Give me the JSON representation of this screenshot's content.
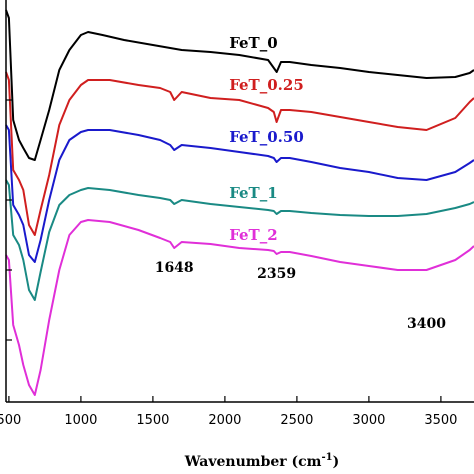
{
  "chart_data": {
    "type": "line",
    "xlabel": "Wavenumber (cm",
    "xlabel_sup": "-1",
    "xlabel_close": ")",
    "ylabel": "",
    "xlim": [
      480,
      3730
    ],
    "xticks": [
      {
        "value": 500,
        "label": "500"
      },
      {
        "value": 1000,
        "label": "1000"
      },
      {
        "value": 1500,
        "label": "1500"
      },
      {
        "value": 2000,
        "label": "2000"
      },
      {
        "value": 2500,
        "label": "2500"
      },
      {
        "value": 3000,
        "label": "3000"
      },
      {
        "value": 3500,
        "label": "3500"
      }
    ],
    "grid": false,
    "series": [
      {
        "name": "FeT_0",
        "color": "#000000",
        "label_at": [
          2030,
          48
        ],
        "points": [
          [
            480,
            10
          ],
          [
            500,
            18
          ],
          [
            530,
            120
          ],
          [
            570,
            140
          ],
          [
            600,
            148
          ],
          [
            640,
            158
          ],
          [
            680,
            160
          ],
          [
            720,
            140
          ],
          [
            780,
            110
          ],
          [
            850,
            70
          ],
          [
            920,
            50
          ],
          [
            1000,
            35
          ],
          [
            1050,
            32
          ],
          [
            1150,
            35
          ],
          [
            1300,
            40
          ],
          [
            1500,
            45
          ],
          [
            1700,
            50
          ],
          [
            1900,
            52
          ],
          [
            2100,
            55
          ],
          [
            2300,
            60
          ],
          [
            2330,
            66
          ],
          [
            2360,
            72
          ],
          [
            2390,
            62
          ],
          [
            2450,
            62
          ],
          [
            2600,
            65
          ],
          [
            2800,
            68
          ],
          [
            3000,
            72
          ],
          [
            3200,
            75
          ],
          [
            3400,
            78
          ],
          [
            3600,
            77
          ],
          [
            3700,
            73
          ],
          [
            3730,
            70
          ]
        ]
      },
      {
        "name": "FeT_0.25",
        "color": "#d01f1f",
        "label_at": [
          2030,
          90
        ],
        "points": [
          [
            480,
            72
          ],
          [
            500,
            80
          ],
          [
            530,
            170
          ],
          [
            570,
            180
          ],
          [
            600,
            190
          ],
          [
            640,
            225
          ],
          [
            680,
            235
          ],
          [
            720,
            210
          ],
          [
            780,
            175
          ],
          [
            850,
            125
          ],
          [
            920,
            100
          ],
          [
            1000,
            85
          ],
          [
            1050,
            80
          ],
          [
            1200,
            80
          ],
          [
            1400,
            85
          ],
          [
            1550,
            88
          ],
          [
            1620,
            92
          ],
          [
            1648,
            100
          ],
          [
            1700,
            92
          ],
          [
            1900,
            98
          ],
          [
            2100,
            100
          ],
          [
            2300,
            108
          ],
          [
            2340,
            112
          ],
          [
            2359,
            122
          ],
          [
            2390,
            110
          ],
          [
            2450,
            110
          ],
          [
            2600,
            112
          ],
          [
            2800,
            117
          ],
          [
            3000,
            122
          ],
          [
            3200,
            127
          ],
          [
            3400,
            130
          ],
          [
            3600,
            118
          ],
          [
            3700,
            102
          ],
          [
            3730,
            98
          ]
        ]
      },
      {
        "name": "FeT_0.50",
        "color": "#1a1acc",
        "label_at": [
          2030,
          142
        ],
        "points": [
          [
            480,
            125
          ],
          [
            500,
            130
          ],
          [
            530,
            205
          ],
          [
            570,
            215
          ],
          [
            600,
            225
          ],
          [
            640,
            255
          ],
          [
            680,
            262
          ],
          [
            720,
            240
          ],
          [
            780,
            200
          ],
          [
            850,
            160
          ],
          [
            920,
            140
          ],
          [
            1000,
            132
          ],
          [
            1050,
            130
          ],
          [
            1200,
            130
          ],
          [
            1400,
            135
          ],
          [
            1550,
            140
          ],
          [
            1620,
            145
          ],
          [
            1648,
            150
          ],
          [
            1700,
            145
          ],
          [
            1900,
            148
          ],
          [
            2100,
            152
          ],
          [
            2300,
            156
          ],
          [
            2340,
            158
          ],
          [
            2359,
            162
          ],
          [
            2390,
            158
          ],
          [
            2450,
            158
          ],
          [
            2600,
            162
          ],
          [
            2800,
            168
          ],
          [
            3000,
            172
          ],
          [
            3200,
            178
          ],
          [
            3400,
            180
          ],
          [
            3600,
            172
          ],
          [
            3700,
            163
          ],
          [
            3730,
            160
          ]
        ]
      },
      {
        "name": "FeT_1",
        "color": "#1a8a84",
        "label_at": [
          2030,
          198
        ],
        "points": [
          [
            480,
            180
          ],
          [
            500,
            185
          ],
          [
            530,
            235
          ],
          [
            570,
            245
          ],
          [
            600,
            260
          ],
          [
            640,
            290
          ],
          [
            680,
            300
          ],
          [
            720,
            272
          ],
          [
            780,
            232
          ],
          [
            850,
            205
          ],
          [
            920,
            195
          ],
          [
            1000,
            190
          ],
          [
            1050,
            188
          ],
          [
            1200,
            190
          ],
          [
            1400,
            195
          ],
          [
            1550,
            198
          ],
          [
            1620,
            200
          ],
          [
            1648,
            204
          ],
          [
            1700,
            200
          ],
          [
            1900,
            204
          ],
          [
            2100,
            207
          ],
          [
            2300,
            210
          ],
          [
            2340,
            211
          ],
          [
            2359,
            214
          ],
          [
            2390,
            211
          ],
          [
            2450,
            211
          ],
          [
            2600,
            213
          ],
          [
            2800,
            215
          ],
          [
            3000,
            216
          ],
          [
            3200,
            216
          ],
          [
            3400,
            214
          ],
          [
            3600,
            208
          ],
          [
            3700,
            204
          ],
          [
            3730,
            202
          ]
        ]
      },
      {
        "name": "FeT_2",
        "color": "#e02fd8",
        "label_at": [
          2030,
          240
        ],
        "points": [
          [
            480,
            255
          ],
          [
            500,
            260
          ],
          [
            530,
            325
          ],
          [
            570,
            345
          ],
          [
            600,
            365
          ],
          [
            640,
            385
          ],
          [
            680,
            395
          ],
          [
            720,
            370
          ],
          [
            780,
            320
          ],
          [
            850,
            270
          ],
          [
            920,
            235
          ],
          [
            1000,
            222
          ],
          [
            1050,
            220
          ],
          [
            1200,
            222
          ],
          [
            1400,
            230
          ],
          [
            1550,
            238
          ],
          [
            1620,
            242
          ],
          [
            1648,
            248
          ],
          [
            1700,
            242
          ],
          [
            1900,
            244
          ],
          [
            2100,
            248
          ],
          [
            2300,
            250
          ],
          [
            2340,
            251
          ],
          [
            2359,
            254
          ],
          [
            2390,
            252
          ],
          [
            2450,
            252
          ],
          [
            2600,
            256
          ],
          [
            2800,
            262
          ],
          [
            3000,
            266
          ],
          [
            3200,
            270
          ],
          [
            3400,
            270
          ],
          [
            3600,
            260
          ],
          [
            3700,
            250
          ],
          [
            3730,
            246
          ]
        ]
      }
    ],
    "annotations": [
      {
        "label": "1648",
        "at": [
          1648,
          272
        ]
      },
      {
        "label": "2359",
        "at": [
          2359,
          278
        ]
      },
      {
        "label": "3400",
        "at": [
          3400,
          328
        ]
      }
    ]
  }
}
